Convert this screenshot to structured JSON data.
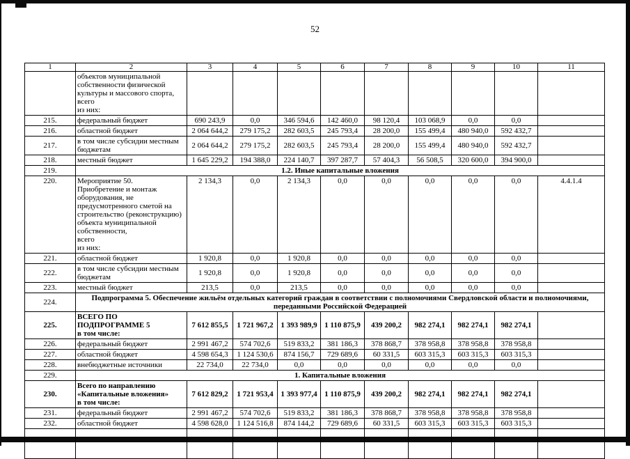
{
  "page": {
    "number": "52"
  },
  "table": {
    "header_cols": [
      "1",
      "2",
      "3",
      "4",
      "5",
      "6",
      "7",
      "8",
      "9",
      "10",
      "11"
    ],
    "rows": [
      {
        "num": "",
        "label": "объектов муниципальной\nсобственности физической\nкультуры и массового спорта,\nвсего\nиз них:",
        "values": [
          "",
          "",
          "",
          "",
          "",
          "",
          "",
          ""
        ],
        "note": "",
        "valign": "top"
      },
      {
        "num": "215.",
        "label": "федеральный бюджет",
        "values": [
          "690 243,9",
          "0,0",
          "346 594,6",
          "142 460,0",
          "98 120,4",
          "103 068,9",
          "0,0",
          "0,0"
        ],
        "note": ""
      },
      {
        "num": "216.",
        "label": "областной бюджет",
        "values": [
          "2 064 644,2",
          "279 175,2",
          "282 603,5",
          "245 793,4",
          "28 200,0",
          "155 499,4",
          "480 940,0",
          "592 432,7"
        ],
        "note": ""
      },
      {
        "num": "217.",
        "label": "в том числе субсидии местным\nбюджетам",
        "values": [
          "2 064 644,2",
          "279 175,2",
          "282 603,5",
          "245 793,4",
          "28 200,0",
          "155 499,4",
          "480 940,0",
          "592 432,7"
        ],
        "note": ""
      },
      {
        "num": "218.",
        "label": "местный бюджет",
        "values": [
          "1 645 229,2",
          "194 388,0",
          "224 140,7",
          "397 287,7",
          "57 404,3",
          "56 508,5",
          "320 600,0",
          "394 900,0"
        ],
        "note": ""
      },
      {
        "type": "section",
        "num": "219.",
        "text": "1.2. Иные капитальные вложения"
      },
      {
        "num": "220.",
        "label": "Мероприятие 50.\nПриобретение и монтаж\nоборудования, не\nпредусмотренного сметой на\nстроительство (реконструкцию)\nобъекта муниципальной\nсобственности,\nвсего\nиз них:",
        "values": [
          "2 134,3",
          "0,0",
          "2 134,3",
          "0,0",
          "0,0",
          "0,0",
          "0,0",
          "0,0"
        ],
        "note": "4.4.1.4",
        "valign": "top"
      },
      {
        "num": "221.",
        "label": "областной бюджет",
        "values": [
          "1 920,8",
          "0,0",
          "1 920,8",
          "0,0",
          "0,0",
          "0,0",
          "0,0",
          "0,0"
        ],
        "note": ""
      },
      {
        "num": "222.",
        "label": "в том числе субсидии местным\nбюджетам",
        "values": [
          "1 920,8",
          "0,0",
          "1 920,8",
          "0,0",
          "0,0",
          "0,0",
          "0,0",
          "0,0"
        ],
        "note": ""
      },
      {
        "num": "223.",
        "label": "местный бюджет",
        "values": [
          "213,5",
          "0,0",
          "213,5",
          "0,0",
          "0,0",
          "0,0",
          "0,0",
          "0,0"
        ],
        "note": ""
      },
      {
        "type": "section",
        "num": "224.",
        "text": "Подпрограмма 5. Обеспечение жильём отдельных категорий граждан в соответствии с полномочиями Свердловской области и полномочиями,\nпереданными Российской Федерацией"
      },
      {
        "num": "225.",
        "label": "ВСЕГО ПО\nПОДПРОГРАММЕ 5\nв том числе:",
        "values": [
          "7 612 855,5",
          "1 721 967,2",
          "1 393 989,9",
          "1 110 875,9",
          "439 200,2",
          "982 274,1",
          "982 274,1",
          "982 274,1"
        ],
        "note": "",
        "bold": true
      },
      {
        "num": "226.",
        "label": "федеральный бюджет",
        "values": [
          "2 991 467,2",
          "574 702,6",
          "519 833,2",
          "381 186,3",
          "378 868,7",
          "378 958,8",
          "378 958,8",
          "378 958,8"
        ],
        "note": ""
      },
      {
        "num": "227.",
        "label": "областной бюджет",
        "values": [
          "4 598 654,3",
          "1 124 530,6",
          "874 156,7",
          "729 689,6",
          "60 331,5",
          "603 315,3",
          "603 315,3",
          "603 315,3"
        ],
        "note": ""
      },
      {
        "num": "228.",
        "label": "внебюджетные источники",
        "values": [
          "22 734,0",
          "22 734,0",
          "0,0",
          "0,0",
          "0,0",
          "0,0",
          "0,0",
          "0,0"
        ],
        "note": ""
      },
      {
        "type": "section",
        "num": "229.",
        "text": "1. Капитальные вложения"
      },
      {
        "num": "230.",
        "label": "Всего по направлению\n«Капитальные вложения»\nв том числе:",
        "values": [
          "7 612 829,2",
          "1 721 953,4",
          "1 393 977,4",
          "1 110 875,9",
          "439 200,2",
          "982 274,1",
          "982 274,1",
          "982 274,1"
        ],
        "note": "",
        "bold": true
      },
      {
        "num": "231.",
        "label": "федеральный бюджет",
        "values": [
          "2 991 467,2",
          "574 702,6",
          "519 833,2",
          "381 186,3",
          "378 868,7",
          "378 958,8",
          "378 958,8",
          "378 958,8"
        ],
        "note": ""
      },
      {
        "num": "232.",
        "label": "областной бюджет",
        "values": [
          "4 598 628,0",
          "1 124 516,8",
          "874 144,2",
          "729 689,6",
          "60 331,5",
          "603 315,3",
          "603 315,3",
          "603 315,3"
        ],
        "note": ""
      }
    ]
  }
}
